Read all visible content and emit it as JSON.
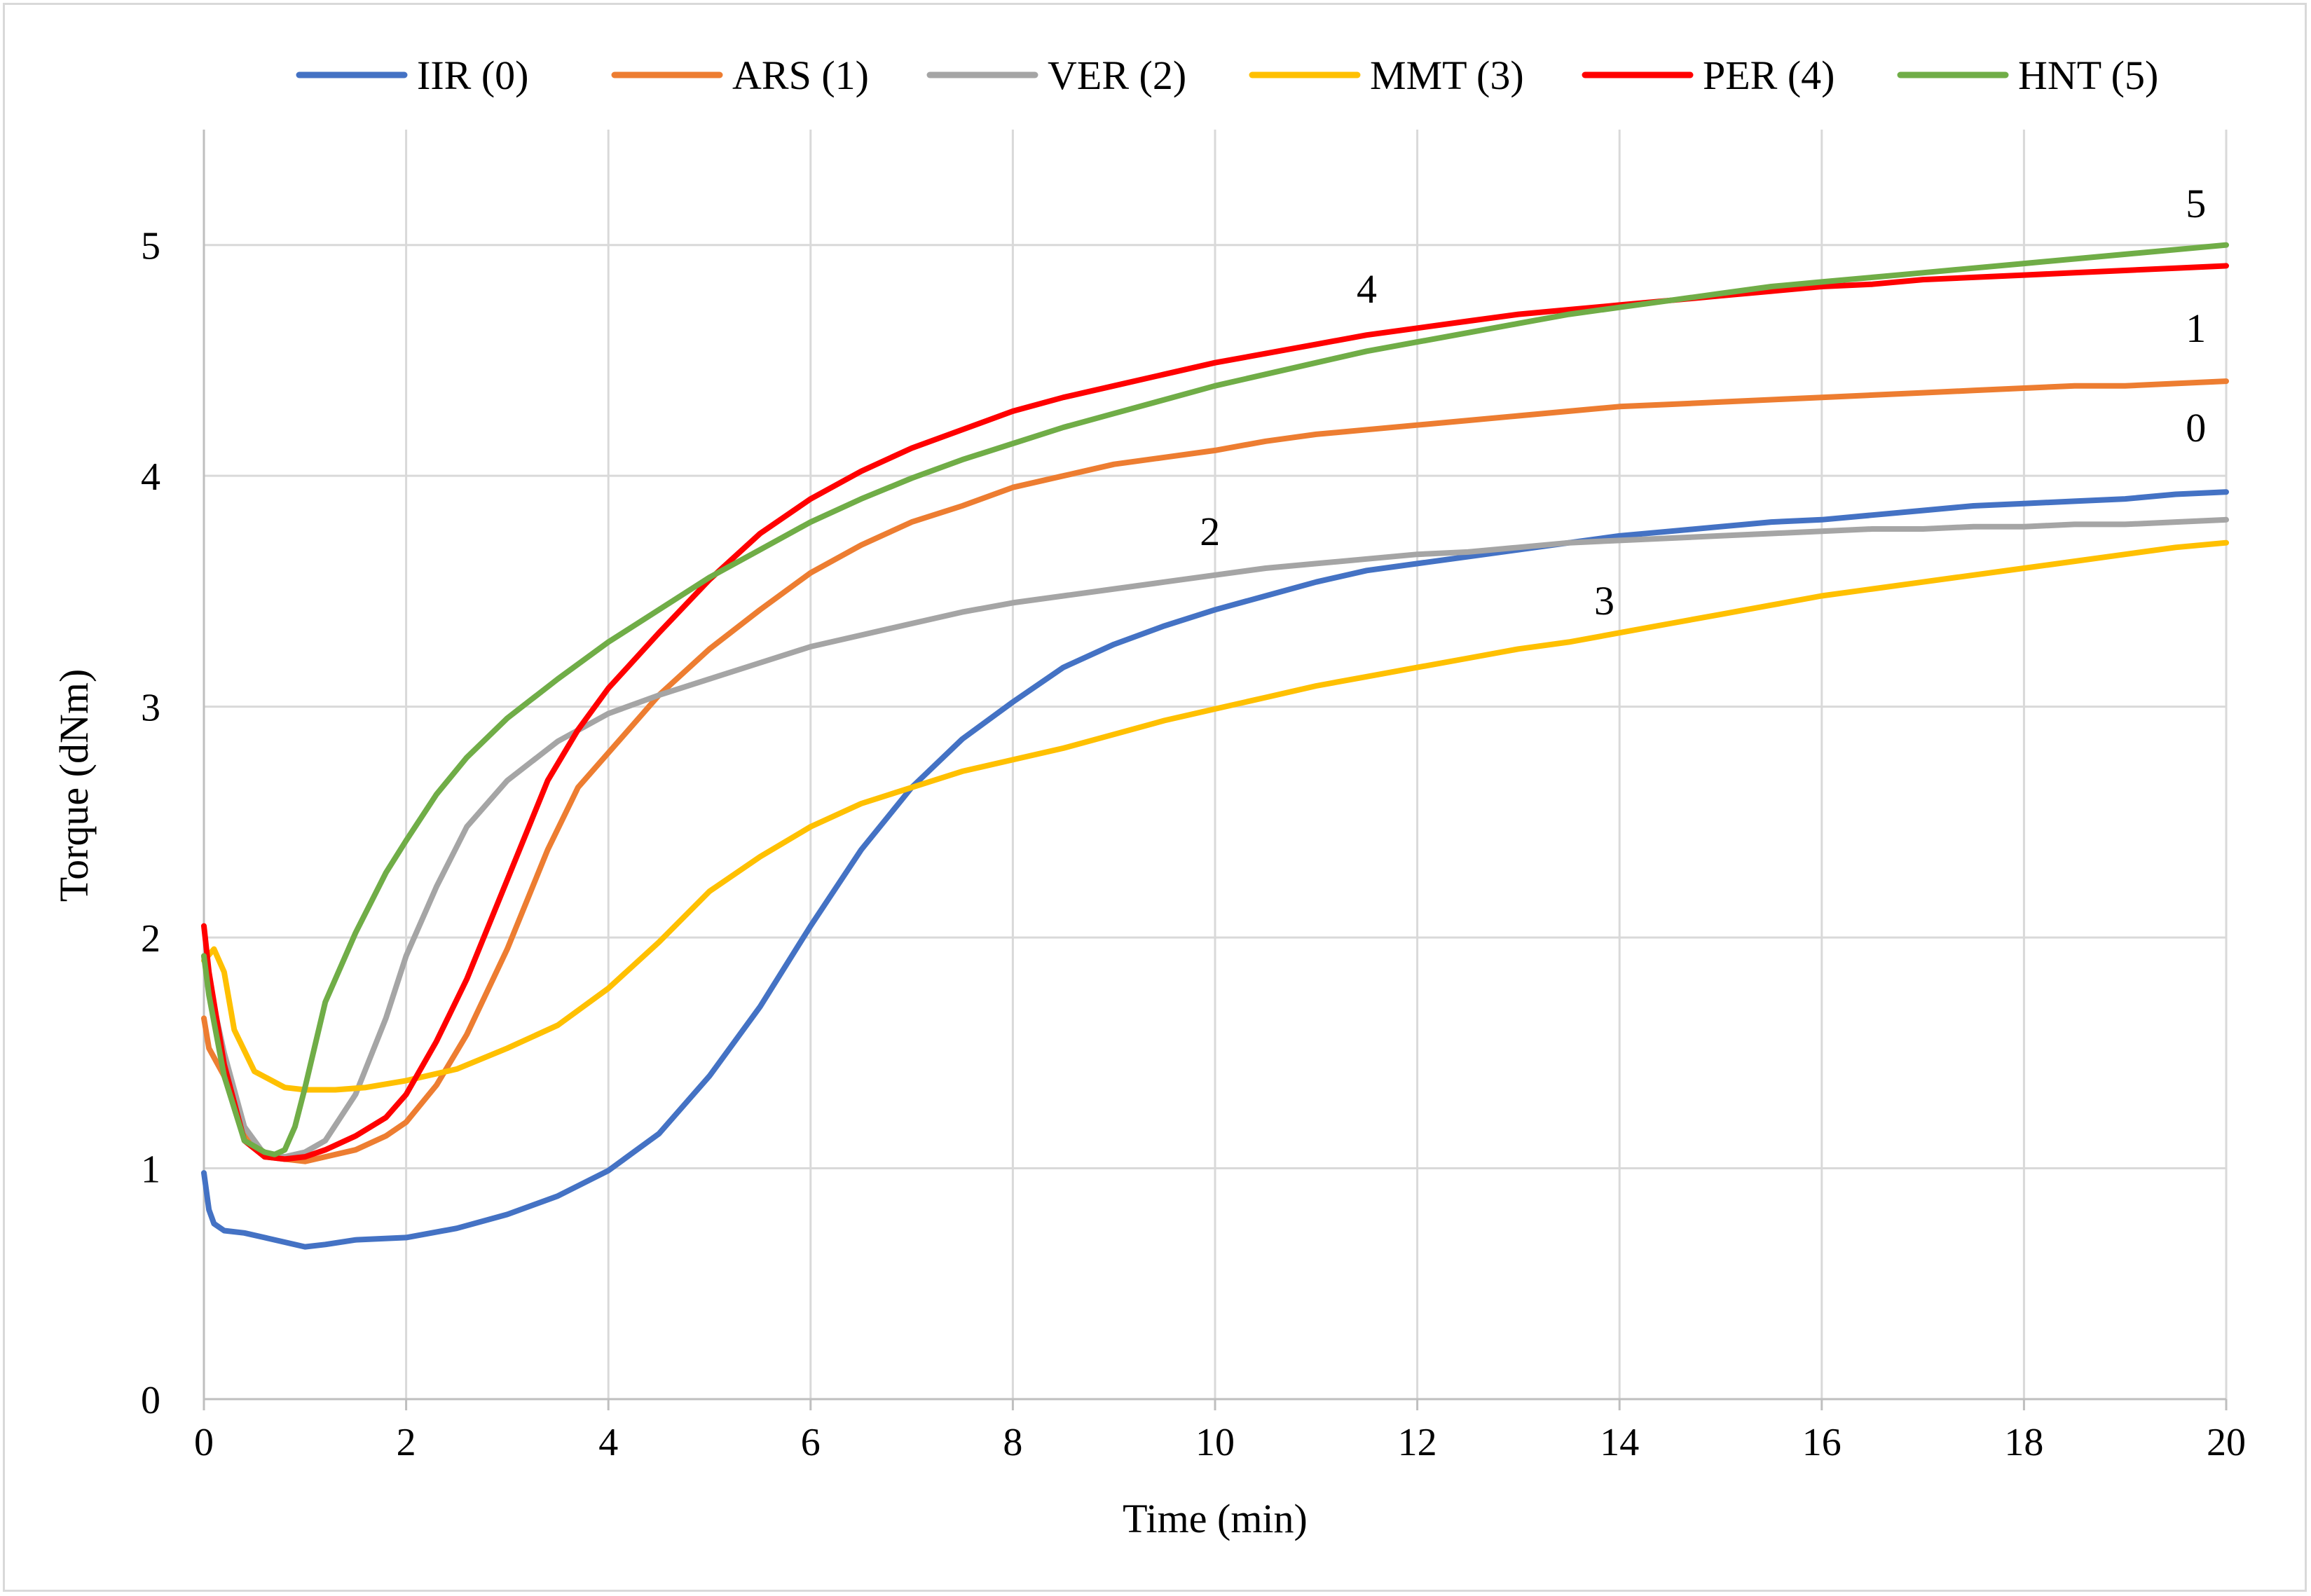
{
  "chart_data": {
    "type": "line",
    "title": "",
    "xlabel": "Time (min)",
    "ylabel": "Torque (dNm)",
    "xlim": [
      0,
      20
    ],
    "ylim": [
      0,
      5.5
    ],
    "xticks": [
      0,
      2,
      4,
      6,
      8,
      10,
      12,
      14,
      16,
      18,
      20
    ],
    "yticks": [
      0,
      1,
      2,
      3,
      4,
      5
    ],
    "grid": true,
    "legend_position": "top",
    "series": [
      {
        "name": "IIR (0)",
        "color": "#4472c4",
        "annotation": "0",
        "x": [
          0,
          0.05,
          0.1,
          0.2,
          0.4,
          0.6,
          0.8,
          1.0,
          1.2,
          1.5,
          2.0,
          2.5,
          3.0,
          3.5,
          4.0,
          4.5,
          5.0,
          5.5,
          6.0,
          6.5,
          7.0,
          7.5,
          8.0,
          8.5,
          9.0,
          9.5,
          10.0,
          10.5,
          11.0,
          11.5,
          12.0,
          12.5,
          13.0,
          13.5,
          14.0,
          14.5,
          15.0,
          15.5,
          16.0,
          16.5,
          17.0,
          17.5,
          18.0,
          18.5,
          19.0,
          19.5,
          20.0
        ],
        "y": [
          0.98,
          0.82,
          0.76,
          0.73,
          0.72,
          0.7,
          0.68,
          0.66,
          0.67,
          0.69,
          0.7,
          0.74,
          0.8,
          0.88,
          0.99,
          1.15,
          1.4,
          1.7,
          2.05,
          2.38,
          2.65,
          2.86,
          3.02,
          3.17,
          3.27,
          3.35,
          3.42,
          3.48,
          3.54,
          3.59,
          3.62,
          3.65,
          3.68,
          3.71,
          3.74,
          3.76,
          3.78,
          3.8,
          3.81,
          3.83,
          3.85,
          3.87,
          3.88,
          3.89,
          3.9,
          3.92,
          3.93
        ]
      },
      {
        "name": "ARS (1)",
        "color": "#ed7d31",
        "annotation": "1",
        "x": [
          0,
          0.05,
          0.2,
          0.4,
          0.6,
          0.8,
          1.0,
          1.2,
          1.5,
          1.8,
          2.0,
          2.3,
          2.6,
          3.0,
          3.4,
          3.7,
          4.0,
          4.5,
          5.0,
          5.5,
          6.0,
          6.5,
          7.0,
          7.5,
          8.0,
          8.5,
          9.0,
          9.5,
          10.0,
          10.5,
          11.0,
          11.5,
          12.0,
          12.5,
          13.0,
          13.5,
          14.0,
          14.5,
          15.0,
          15.5,
          16.0,
          16.5,
          17.0,
          17.5,
          18.0,
          18.5,
          19.0,
          19.5,
          20.0
        ],
        "y": [
          1.65,
          1.52,
          1.4,
          1.15,
          1.05,
          1.04,
          1.03,
          1.05,
          1.08,
          1.14,
          1.2,
          1.36,
          1.58,
          1.95,
          2.38,
          2.65,
          2.8,
          3.05,
          3.25,
          3.42,
          3.58,
          3.7,
          3.8,
          3.87,
          3.95,
          4.0,
          4.05,
          4.08,
          4.11,
          4.15,
          4.18,
          4.2,
          4.22,
          4.24,
          4.26,
          4.28,
          4.3,
          4.31,
          4.32,
          4.33,
          4.34,
          4.35,
          4.36,
          4.37,
          4.38,
          4.39,
          4.39,
          4.4,
          4.41
        ]
      },
      {
        "name": "VER (2)",
        "color": "#a5a5a5",
        "annotation": "2",
        "x": [
          0,
          0.05,
          0.2,
          0.4,
          0.6,
          0.8,
          1.0,
          1.2,
          1.5,
          1.8,
          2.0,
          2.3,
          2.6,
          3.0,
          3.5,
          4.0,
          4.5,
          5.0,
          5.5,
          6.0,
          6.5,
          7.0,
          7.5,
          8.0,
          8.5,
          9.0,
          9.5,
          10.0,
          10.5,
          11.0,
          11.5,
          12.0,
          12.5,
          13.0,
          13.5,
          14.0,
          14.5,
          15.0,
          15.5,
          16.0,
          16.5,
          17.0,
          17.5,
          18.0,
          18.5,
          19.0,
          19.5,
          20.0
        ],
        "y": [
          1.92,
          1.8,
          1.5,
          1.18,
          1.06,
          1.05,
          1.07,
          1.12,
          1.32,
          1.65,
          1.92,
          2.22,
          2.48,
          2.68,
          2.85,
          2.97,
          3.05,
          3.12,
          3.19,
          3.26,
          3.31,
          3.36,
          3.41,
          3.45,
          3.48,
          3.51,
          3.54,
          3.57,
          3.6,
          3.62,
          3.64,
          3.66,
          3.67,
          3.69,
          3.71,
          3.72,
          3.73,
          3.74,
          3.75,
          3.76,
          3.77,
          3.77,
          3.78,
          3.78,
          3.79,
          3.79,
          3.8,
          3.81
        ]
      },
      {
        "name": "MMT (3)",
        "color": "#ffc000",
        "annotation": "3",
        "x": [
          0,
          0.1,
          0.2,
          0.3,
          0.5,
          0.8,
          1.0,
          1.3,
          1.6,
          2.0,
          2.5,
          3.0,
          3.5,
          4.0,
          4.5,
          5.0,
          5.5,
          6.0,
          6.5,
          7.0,
          7.5,
          8.0,
          8.5,
          9.0,
          9.5,
          10.0,
          10.5,
          11.0,
          11.5,
          12.0,
          12.5,
          13.0,
          13.5,
          14.0,
          14.5,
          15.0,
          15.5,
          16.0,
          16.5,
          17.0,
          17.5,
          18.0,
          18.5,
          19.0,
          19.5,
          20.0
        ],
        "y": [
          1.9,
          1.95,
          1.85,
          1.6,
          1.42,
          1.35,
          1.34,
          1.34,
          1.35,
          1.38,
          1.43,
          1.52,
          1.62,
          1.78,
          1.98,
          2.2,
          2.35,
          2.48,
          2.58,
          2.65,
          2.72,
          2.77,
          2.82,
          2.88,
          2.94,
          2.99,
          3.04,
          3.09,
          3.13,
          3.17,
          3.21,
          3.25,
          3.28,
          3.32,
          3.36,
          3.4,
          3.44,
          3.48,
          3.51,
          3.54,
          3.57,
          3.6,
          3.63,
          3.66,
          3.69,
          3.71
        ]
      },
      {
        "name": "PER (4)",
        "color": "#ff0000",
        "annotation": "4",
        "x": [
          0,
          0.05,
          0.2,
          0.4,
          0.6,
          0.8,
          1.0,
          1.2,
          1.5,
          1.8,
          2.0,
          2.3,
          2.6,
          3.0,
          3.4,
          3.7,
          4.0,
          4.5,
          5.0,
          5.5,
          6.0,
          6.5,
          7.0,
          7.5,
          8.0,
          8.5,
          9.0,
          9.5,
          10.0,
          10.5,
          11.0,
          11.5,
          12.0,
          12.5,
          13.0,
          13.5,
          14.0,
          14.5,
          15.0,
          15.5,
          16.0,
          16.5,
          17.0,
          17.5,
          18.0,
          18.5,
          19.0,
          19.5,
          20.0
        ],
        "y": [
          2.05,
          1.85,
          1.45,
          1.12,
          1.05,
          1.04,
          1.05,
          1.08,
          1.14,
          1.22,
          1.32,
          1.55,
          1.82,
          2.25,
          2.68,
          2.9,
          3.08,
          3.32,
          3.55,
          3.75,
          3.9,
          4.02,
          4.12,
          4.2,
          4.28,
          4.34,
          4.39,
          4.44,
          4.49,
          4.53,
          4.57,
          4.61,
          4.64,
          4.67,
          4.7,
          4.72,
          4.74,
          4.76,
          4.78,
          4.8,
          4.82,
          4.83,
          4.85,
          4.86,
          4.87,
          4.88,
          4.89,
          4.9,
          4.91
        ]
      },
      {
        "name": "HNT (5)",
        "color": "#70ad47",
        "annotation": "5",
        "x": [
          0,
          0.05,
          0.2,
          0.4,
          0.6,
          0.7,
          0.8,
          0.9,
          1.0,
          1.2,
          1.5,
          1.8,
          2.0,
          2.3,
          2.6,
          3.0,
          3.5,
          4.0,
          4.5,
          5.0,
          5.5,
          6.0,
          6.5,
          7.0,
          7.5,
          8.0,
          8.5,
          9.0,
          9.5,
          10.0,
          10.5,
          11.0,
          11.5,
          12.0,
          12.5,
          13.0,
          13.5,
          14.0,
          14.5,
          15.0,
          15.5,
          16.0,
          16.5,
          17.0,
          17.5,
          18.0,
          18.5,
          19.0,
          19.5,
          20.0
        ],
        "y": [
          1.92,
          1.75,
          1.4,
          1.12,
          1.07,
          1.06,
          1.08,
          1.18,
          1.35,
          1.72,
          2.02,
          2.28,
          2.42,
          2.62,
          2.78,
          2.95,
          3.12,
          3.28,
          3.42,
          3.56,
          3.68,
          3.8,
          3.9,
          3.99,
          4.07,
          4.14,
          4.21,
          4.27,
          4.33,
          4.39,
          4.44,
          4.49,
          4.54,
          4.58,
          4.62,
          4.66,
          4.7,
          4.73,
          4.76,
          4.79,
          4.82,
          4.84,
          4.86,
          4.88,
          4.9,
          4.92,
          4.94,
          4.96,
          4.98,
          5.0
        ]
      }
    ],
    "annotations": [
      {
        "text": "0",
        "x": 19.7,
        "y": 4.15
      },
      {
        "text": "1",
        "x": 19.7,
        "y": 4.58
      },
      {
        "text": "2",
        "x": 9.95,
        "y": 3.7
      },
      {
        "text": "3",
        "x": 13.85,
        "y": 3.4
      },
      {
        "text": "4",
        "x": 11.5,
        "y": 4.75
      },
      {
        "text": "5",
        "x": 19.7,
        "y": 5.12
      }
    ]
  }
}
